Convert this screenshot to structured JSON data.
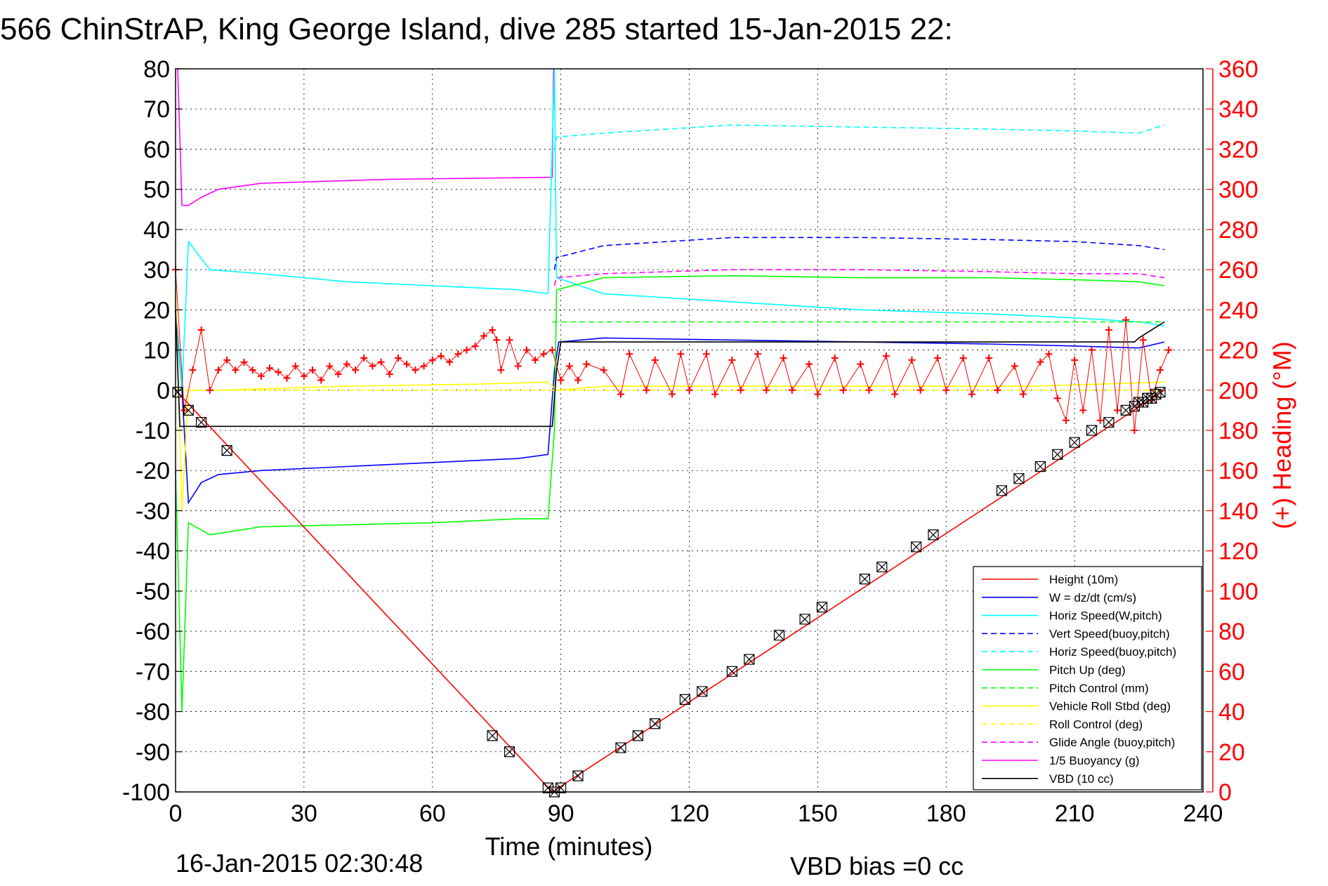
{
  "chart_data": {
    "type": "line",
    "title": "566 ChinStrAP, King George Island, dive 285 started 15-Jan-2015 22:",
    "xlabel": "Time (minutes)",
    "ylabel": "",
    "ylabel_right": "(+) Heading (°M)",
    "footer_left": "16-Jan-2015 02:30:48",
    "footer_right": "VBD bias =0 cc",
    "xlim": [
      0,
      240
    ],
    "ylim": [
      -100,
      80
    ],
    "ylim_right": [
      0,
      360
    ],
    "x_ticks": [
      0,
      30,
      60,
      90,
      120,
      150,
      180,
      210,
      240
    ],
    "y_ticks": [
      80,
      70,
      60,
      50,
      40,
      30,
      20,
      10,
      0,
      -10,
      -20,
      -30,
      -40,
      -50,
      -60,
      -70,
      -80,
      -90,
      -100
    ],
    "y_ticks_right": [
      360,
      340,
      320,
      300,
      280,
      260,
      240,
      220,
      200,
      180,
      160,
      140,
      120,
      100,
      80,
      60,
      40,
      20,
      0
    ],
    "grid": true,
    "legend_position": "bottom-right",
    "series": [
      {
        "name": "Height (10m)",
        "color": "#ff0000",
        "style": "solid",
        "x": [
          0,
          88,
          231
        ],
        "y": [
          0,
          -100,
          0
        ]
      },
      {
        "name": "W = dz/dt (cm/s)",
        "color": "#0000ff",
        "style": "solid",
        "x": [
          0,
          1.5,
          3,
          6,
          10,
          20,
          40,
          60,
          80,
          87,
          88.5,
          89.5,
          100,
          130,
          160,
          190,
          210,
          225,
          231
        ],
        "y": [
          20,
          0,
          -28,
          -23,
          -21,
          -20,
          -19,
          -18,
          -17,
          -16,
          5,
          12,
          13,
          12.5,
          12,
          11.5,
          11,
          10.5,
          12
        ]
      },
      {
        "name": "Horiz Speed(W,pitch)",
        "color": "#00ffff",
        "style": "solid",
        "x": [
          0,
          1.5,
          3,
          8,
          20,
          40,
          60,
          80,
          87,
          88.5,
          89,
          100,
          130,
          160,
          190,
          210,
          225,
          231
        ],
        "y": [
          18,
          0,
          37,
          30,
          29,
          27,
          26,
          25,
          24,
          80,
          28,
          24,
          22,
          20,
          19,
          18,
          17,
          16
        ]
      },
      {
        "name": "Vert Speed(buoy,pitch)",
        "color": "#0000ff",
        "style": "dashed",
        "x": [
          88.5,
          89,
          100,
          130,
          160,
          190,
          210,
          225,
          231
        ],
        "y": [
          30,
          33,
          36,
          38,
          38,
          37.5,
          37,
          36,
          35
        ]
      },
      {
        "name": "Horiz Speed(buoy,pitch)",
        "color": "#00ffff",
        "style": "dashed",
        "x": [
          88.5,
          89,
          100,
          130,
          160,
          190,
          210,
          225,
          231
        ],
        "y": [
          60,
          63,
          64,
          66,
          65.5,
          65,
          64.5,
          64,
          66
        ]
      },
      {
        "name": "Pitch Up (deg)",
        "color": "#00ff00",
        "style": "solid",
        "x": [
          0,
          1.5,
          3,
          8,
          20,
          40,
          60,
          80,
          87,
          88.5,
          89,
          100,
          130,
          160,
          190,
          210,
          225,
          231
        ],
        "y": [
          -20,
          -80,
          -33,
          -36,
          -34,
          -33.5,
          -33,
          -32,
          -32,
          -10,
          25,
          28,
          28.5,
          28,
          28,
          27.5,
          27,
          26
        ]
      },
      {
        "name": "Pitch Control (mm)",
        "color": "#00ff00",
        "style": "dashed",
        "x": [
          88,
          231
        ],
        "y": [
          17,
          17
        ]
      },
      {
        "name": "Vehicle Roll Stbd (deg)",
        "color": "#ffff00",
        "style": "solid",
        "x": [
          0,
          1.5,
          3,
          10,
          40,
          70,
          87,
          89,
          100,
          150,
          200,
          231
        ],
        "y": [
          25,
          -30,
          0,
          0,
          1,
          1.5,
          2,
          0,
          1,
          1,
          1,
          2
        ]
      },
      {
        "name": "Roll Control (deg)",
        "color": "#ffff00",
        "style": "dashed",
        "x": [
          0,
          231
        ],
        "y": [
          0,
          0
        ]
      },
      {
        "name": "Glide Angle (buoy,pitch)",
        "color": "#ff00ff",
        "style": "dashed",
        "x": [
          88.5,
          89,
          100,
          130,
          160,
          190,
          210,
          225,
          231
        ],
        "y": [
          26,
          28,
          29,
          30,
          30,
          29.5,
          29,
          29,
          28
        ]
      },
      {
        "name": "1/5 Buoyancy (g)",
        "color": "#ff00ff",
        "style": "solid",
        "x": [
          0.5,
          1.5,
          3,
          6,
          10,
          20,
          50,
          88,
          88.3
        ],
        "y": [
          80,
          46,
          46,
          48,
          50,
          51.5,
          52.5,
          53,
          80
        ]
      },
      {
        "name": "VBD (10 cc)",
        "color": "#000000",
        "style": "solid",
        "x": [
          0,
          1,
          88,
          89,
          90,
          224,
          225,
          228,
          231
        ],
        "y": [
          20,
          -9,
          -9,
          5,
          12,
          12,
          13,
          15,
          17
        ]
      }
    ],
    "heading_series": {
      "name": "(+) Heading",
      "color": "#ff0000",
      "marker": "+",
      "axis": "right",
      "x": [
        0,
        2,
        4,
        6,
        8,
        10,
        12,
        14,
        16,
        18,
        20,
        22,
        24,
        26,
        28,
        30,
        32,
        34,
        36,
        38,
        40,
        42,
        44,
        46,
        48,
        50,
        52,
        54,
        56,
        58,
        60,
        62,
        64,
        66,
        68,
        70,
        72,
        74,
        75,
        76,
        78,
        80,
        82,
        84,
        86,
        88,
        90,
        92,
        94,
        96,
        100,
        104,
        106,
        110,
        112,
        116,
        118,
        120,
        124,
        126,
        130,
        132,
        136,
        138,
        142,
        144,
        148,
        150,
        154,
        156,
        160,
        162,
        166,
        168,
        172,
        174,
        178,
        180,
        184,
        186,
        190,
        192,
        196,
        198,
        202,
        204,
        206,
        208,
        210,
        212,
        214,
        216,
        218,
        220,
        222,
        224,
        226,
        228,
        230,
        232
      ],
      "y": [
        260,
        190,
        210,
        230,
        200,
        210,
        215,
        210,
        214,
        210,
        207,
        211,
        209,
        206,
        212,
        207,
        210,
        205,
        212,
        208,
        213,
        210,
        216,
        212,
        214,
        208,
        216,
        213,
        210,
        212,
        215,
        217,
        214,
        218,
        220,
        222,
        227,
        230,
        225,
        210,
        225,
        212,
        220,
        215,
        218,
        220,
        205,
        212,
        205,
        213,
        210,
        198,
        218,
        200,
        215,
        198,
        218,
        200,
        218,
        198,
        215,
        200,
        218,
        200,
        216,
        200,
        213,
        198,
        216,
        200,
        213,
        200,
        217,
        198,
        215,
        200,
        216,
        200,
        216,
        198,
        216,
        200,
        212,
        198,
        214,
        218,
        196,
        185,
        215,
        190,
        220,
        185,
        230,
        190,
        235,
        180,
        225,
        195,
        210,
        220
      ]
    },
    "depth_markers": {
      "note": "triangle/box markers along Height line",
      "x": [
        0.5,
        3,
        6,
        12,
        74,
        78,
        87,
        88.5,
        90,
        94,
        104,
        108,
        112,
        119,
        123,
        130,
        134,
        141,
        147,
        151,
        161,
        165,
        173,
        177,
        193,
        197,
        202,
        206,
        210,
        214,
        218,
        222,
        224,
        225,
        226,
        227,
        228,
        229,
        230
      ],
      "y": [
        -0.5,
        -5,
        -8,
        -15,
        -86,
        -90,
        -99,
        -100,
        -99,
        -96,
        -89,
        -86,
        -83,
        -77,
        -75,
        -70,
        -67,
        -61,
        -57,
        -54,
        -47,
        -44,
        -39,
        -36,
        -25,
        -22,
        -19,
        -16,
        -13,
        -10,
        -8,
        -5,
        -4,
        -3,
        -3,
        -2,
        -2,
        -1,
        -0.5
      ]
    }
  }
}
